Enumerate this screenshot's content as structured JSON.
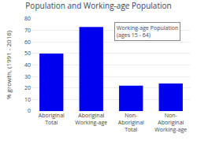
{
  "chart_data": {
    "type": "bar",
    "title": "Population and Working-age Population",
    "categories": [
      "Aboriginal\nTotal",
      "Aboriginal\nWorking-age",
      "Non-\nAboriginal\nTotal",
      "Non-\nAboriginal\nWorking-age"
    ],
    "values": [
      50,
      73,
      22,
      24
    ],
    "color": "#0000EE",
    "ylabel": "% growth, (1991 - 2016)",
    "annotation": "Working-age Population\n(ages 15 - 64)",
    "ylim": [
      0,
      80
    ],
    "yticks": [
      0,
      10,
      20,
      30,
      40,
      50,
      60,
      70,
      80
    ],
    "grid": true
  }
}
